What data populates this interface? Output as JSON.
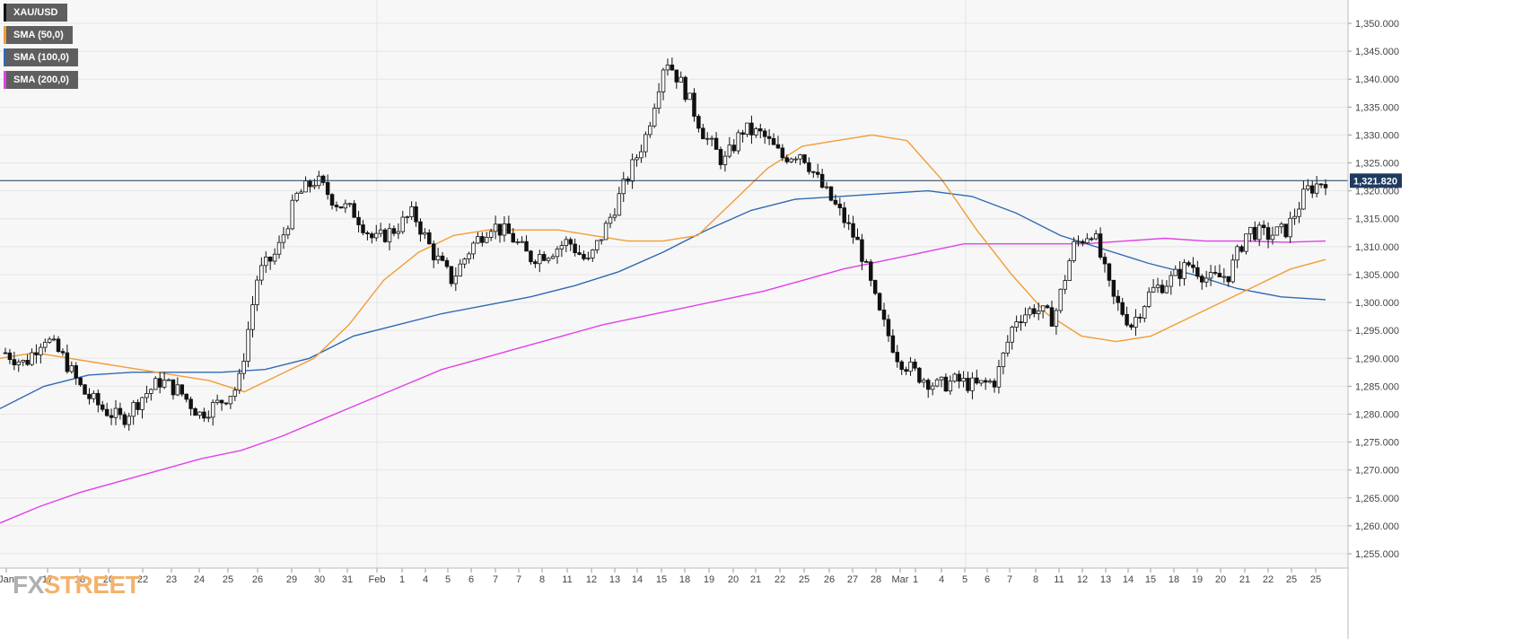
{
  "legend": [
    {
      "label": "XAU/USD",
      "color": "#111111"
    },
    {
      "label": "SMA (50,0)",
      "color": "#f39c34"
    },
    {
      "label": "SMA (100,0)",
      "color": "#2f6ab3"
    },
    {
      "label": "SMA (200,0)",
      "color": "#e040e8"
    }
  ],
  "logo": {
    "part1": "FX",
    "part2": "STREET"
  },
  "chart_data": {
    "type": "candlestick",
    "symbol": "XAU/USD",
    "last_price_label": "1,321.820",
    "last_price": 1321.82,
    "ylim": [
      1253,
      1353
    ],
    "yticks": [
      1255,
      1260,
      1265,
      1270,
      1275,
      1280,
      1285,
      1290,
      1295,
      1300,
      1305,
      1310,
      1315,
      1320,
      1325,
      1330,
      1335,
      1340,
      1345,
      1350
    ],
    "ytick_labels": [
      "1,255.000",
      "1,260.000",
      "1,265.000",
      "1,270.000",
      "1,275.000",
      "1,280.000",
      "1,285.000",
      "1,290.000",
      "1,295.000",
      "1,300.000",
      "1,305.000",
      "1,310.000",
      "1,315.000",
      "1,320.000",
      "1,325.000",
      "1,330.000",
      "1,335.000",
      "1,340.000",
      "1,345.000",
      "1,350.000"
    ],
    "xtick_labels": [
      "Jan",
      "17",
      "18",
      "20",
      "22",
      "23",
      "24",
      "25",
      "26",
      "29",
      "30",
      "31",
      "Feb",
      "1",
      "4",
      "5",
      "6",
      "7",
      "7",
      "8",
      "11",
      "12",
      "13",
      "14",
      "15",
      "18",
      "19",
      "20",
      "21",
      "22",
      "25",
      "26",
      "27",
      "28",
      "Mar",
      "1",
      "4",
      "5",
      "6",
      "7",
      "8",
      "11",
      "12",
      "13",
      "14",
      "15",
      "18",
      "19",
      "20",
      "21",
      "22",
      "25",
      "25"
    ],
    "grid": true,
    "price_anchors": [
      1291,
      1289,
      1294,
      1290,
      1284,
      1281,
      1279,
      1283,
      1286,
      1284,
      1280,
      1282,
      1285,
      1305,
      1309,
      1319,
      1322,
      1318,
      1316,
      1311,
      1313,
      1316,
      1309,
      1304,
      1310,
      1314,
      1312,
      1308,
      1309,
      1311,
      1307,
      1314,
      1322,
      1330,
      1344,
      1338,
      1330,
      1325,
      1331,
      1330,
      1326,
      1327,
      1321,
      1316,
      1310,
      1298,
      1290,
      1287,
      1285,
      1286,
      1285,
      1286,
      1297,
      1299,
      1297,
      1310,
      1313,
      1301,
      1296,
      1302,
      1304,
      1307,
      1304,
      1305,
      1313,
      1312,
      1313,
      1320,
      1322
    ],
    "series": [
      {
        "name": "SMA (50,0)",
        "color": "#f39c34",
        "values": [
          1290,
          1291,
          1290,
          1289,
          1288,
          1287,
          1286,
          1284,
          1287,
          1290,
          1296,
          1304,
          1309,
          1312,
          1313,
          1313,
          1313,
          1312,
          1311,
          1311,
          1312,
          1318,
          1324,
          1328,
          1329,
          1330,
          1329,
          1322,
          1313,
          1305,
          1298,
          1294,
          1293,
          1294,
          1297,
          1300,
          1303,
          1306,
          1307.7
        ]
      },
      {
        "name": "SMA (100,0)",
        "color": "#2f6ab3",
        "values": [
          1281,
          1285,
          1287,
          1287.5,
          1287.5,
          1287.5,
          1288,
          1290,
          1294,
          1296,
          1298,
          1299.5,
          1301,
          1303,
          1305.5,
          1309,
          1313,
          1316.5,
          1318.5,
          1319,
          1319.5,
          1320,
          1319,
          1316,
          1312,
          1309.5,
          1307,
          1305,
          1302.5,
          1301,
          1300.5
        ]
      },
      {
        "name": "SMA (200,0)",
        "color": "#e040e8",
        "values": [
          1260.5,
          1263.5,
          1266,
          1268,
          1270,
          1272,
          1273.5,
          1276,
          1279,
          1282,
          1285,
          1288,
          1290,
          1292,
          1294,
          1296,
          1297.5,
          1299,
          1300.5,
          1302,
          1304,
          1306,
          1307.5,
          1309,
          1310.5,
          1310.5,
          1310.5,
          1310.5,
          1311,
          1311.5,
          1311,
          1311,
          1310.8,
          1311
        ]
      }
    ]
  }
}
